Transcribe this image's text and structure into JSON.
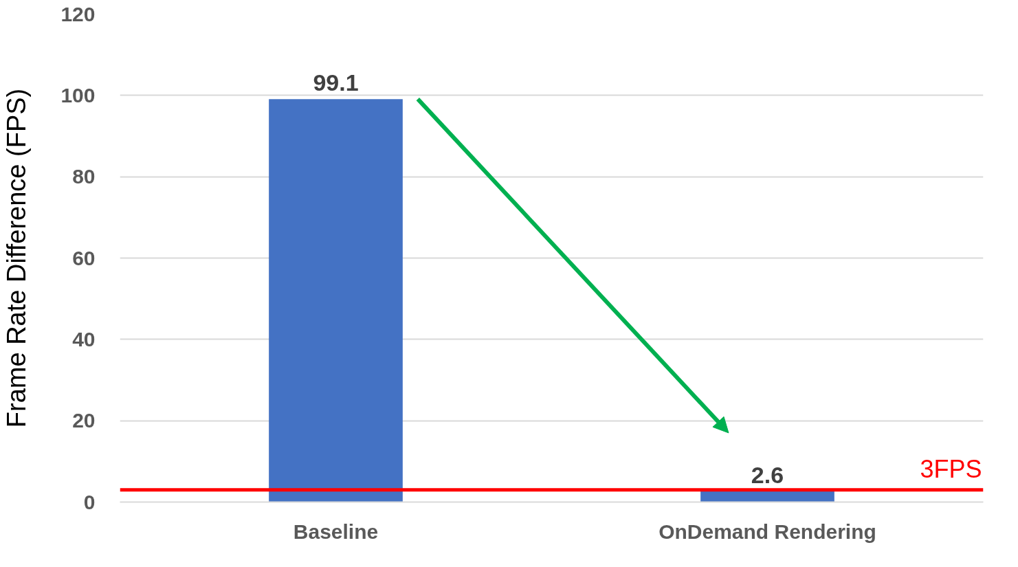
{
  "chart_data": {
    "type": "bar",
    "ylabel": "Frame Rate Difference (FPS)",
    "categories": [
      "Baseline",
      "OnDemand Rendering"
    ],
    "series": [
      {
        "color": "#4472c4",
        "values": [
          99.1,
          2.6
        ]
      }
    ],
    "ylim": [
      0,
      120
    ],
    "yticks": [
      0,
      20,
      40,
      60,
      80,
      100,
      120
    ],
    "grid": "y",
    "data_labels": true,
    "ref_lines": [
      {
        "axis": "y",
        "value": 3,
        "label": "3FPS",
        "color": "#ff0000"
      }
    ]
  }
}
